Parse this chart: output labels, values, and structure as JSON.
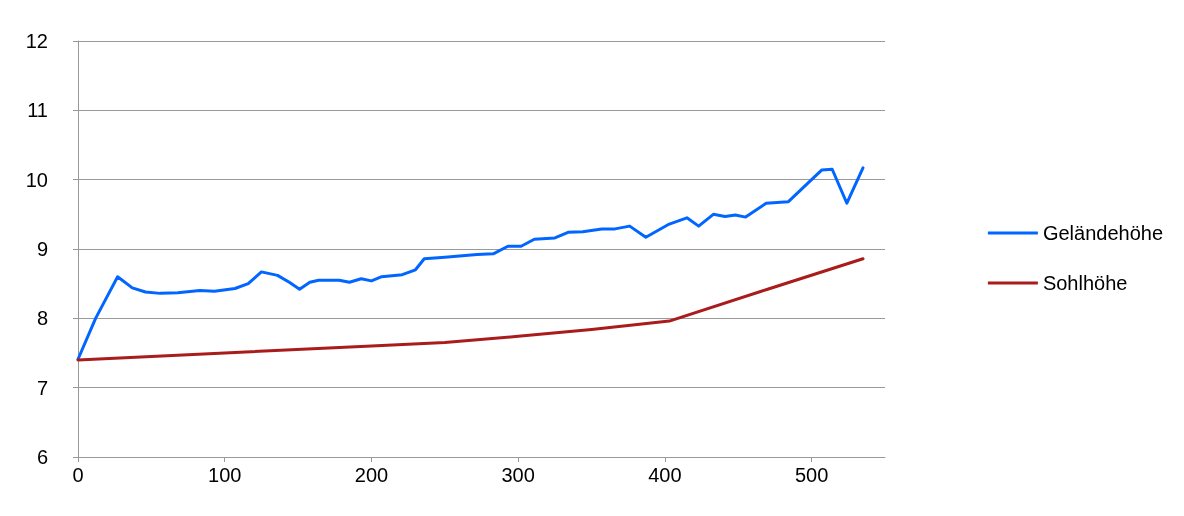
{
  "chart_data": {
    "type": "line",
    "xlim": [
      0,
      550
    ],
    "xticks": [
      0,
      100,
      200,
      300,
      400,
      500
    ],
    "ylim": [
      6,
      12
    ],
    "yticks": [
      6,
      7,
      8,
      9,
      10,
      11,
      12
    ],
    "grid": "y",
    "legend": "right",
    "marker": "none",
    "line_style": "solid",
    "series": [
      {
        "name": "Geländehöhe",
        "color": "#0066ff",
        "x": [
          0,
          12,
          20,
          27,
          37,
          46,
          56,
          68,
          83,
          93,
          107,
          116,
          125,
          136,
          144,
          151,
          158,
          164,
          178,
          185,
          193,
          200,
          207,
          221,
          230,
          236,
          250,
          272,
          283,
          293,
          302,
          311,
          325,
          334,
          344,
          357,
          366,
          376,
          387,
          403,
          415,
          423,
          433,
          441,
          448,
          455,
          469,
          484,
          496,
          507,
          514,
          524,
          535
        ],
        "values": [
          7.41,
          8.0,
          8.32,
          8.6,
          8.44,
          8.38,
          8.36,
          8.37,
          8.4,
          8.39,
          8.43,
          8.5,
          8.67,
          8.62,
          8.52,
          8.42,
          8.52,
          8.55,
          8.55,
          8.52,
          8.57,
          8.54,
          8.6,
          8.63,
          8.7,
          8.86,
          8.88,
          8.92,
          8.93,
          9.04,
          9.04,
          9.14,
          9.16,
          9.24,
          9.25,
          9.29,
          9.29,
          9.33,
          9.17,
          9.36,
          9.45,
          9.33,
          9.5,
          9.47,
          9.49,
          9.46,
          9.66,
          9.68,
          9.92,
          10.14,
          10.15,
          9.66,
          10.17
        ]
      },
      {
        "name": "Sohlhöhe",
        "color": "#aa1c1c",
        "x": [
          0,
          100,
          200,
          250,
          300,
          350,
          403,
          470,
          535
        ],
        "values": [
          7.4,
          7.5,
          7.6,
          7.65,
          7.74,
          7.84,
          7.96,
          8.42,
          8.86
        ]
      }
    ]
  }
}
